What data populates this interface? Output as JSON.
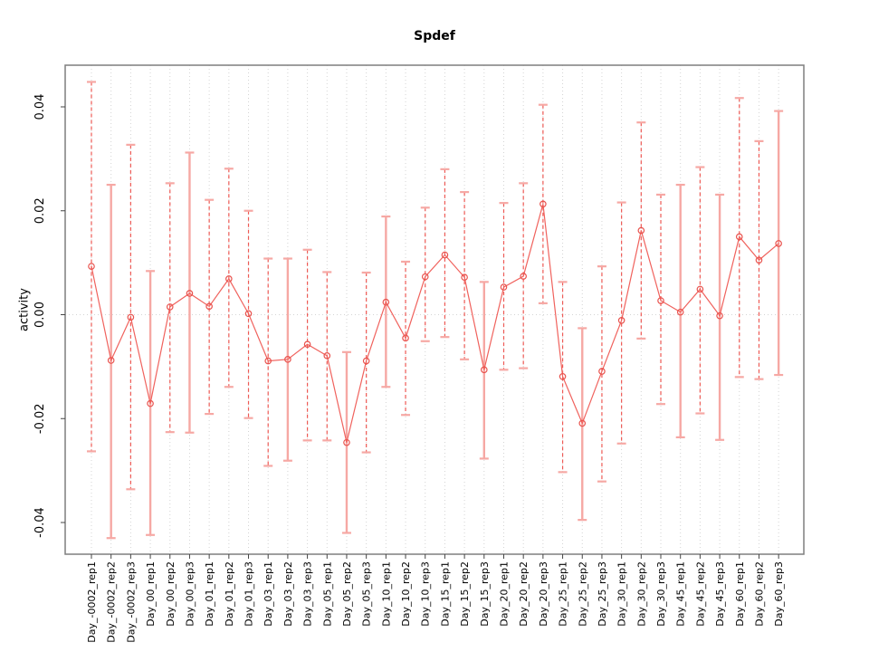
{
  "page": {
    "background": "#ffffff"
  },
  "chart_data": {
    "type": "line",
    "title": "Spdef",
    "xlabel": "",
    "ylabel": "activity",
    "legend": null,
    "axis": {
      "ylim": [
        -0.0461,
        0.048
      ],
      "yticks": [
        -0.04,
        -0.02,
        0.0,
        0.02,
        0.04
      ],
      "ytick_labels": [
        "-0.04",
        "-0.02",
        "0.00",
        "0.02",
        "0.04"
      ],
      "grid": {
        "vertical_dotted_per_category": true,
        "horizontal_zero_line": true
      }
    },
    "colors": {
      "point": "#e9534e",
      "line": "#f0625d",
      "bar_dashed": "#ee5a55",
      "bar_solid": "#f6a8a4",
      "cap": "#f6a8a4",
      "grid": "#d4d4d4",
      "box": "#7f7f7f",
      "tick": "#444444",
      "text": "#000000"
    },
    "series": [
      {
        "name": "activity",
        "points": [
          {
            "label": "Day_-0002_rep1",
            "mean": 0.0093,
            "lower": -0.0263,
            "upper": 0.0448,
            "bar": "dashed"
          },
          {
            "label": "Day_-0002_rep2",
            "mean": -0.0088,
            "lower": -0.043,
            "upper": 0.025,
            "bar": "solid"
          },
          {
            "label": "Day_-0002_rep3",
            "mean": -0.0005,
            "lower": -0.0336,
            "upper": 0.0327,
            "bar": "dashed"
          },
          {
            "label": "Day_00_rep1",
            "mean": -0.0171,
            "lower": -0.0424,
            "upper": 0.0084,
            "bar": "solid"
          },
          {
            "label": "Day_00_rep2",
            "mean": 0.0015,
            "lower": -0.0226,
            "upper": 0.0253,
            "bar": "dashed"
          },
          {
            "label": "Day_00_rep3",
            "mean": 0.0041,
            "lower": -0.0227,
            "upper": 0.0312,
            "bar": "solid"
          },
          {
            "label": "Day_01_rep1",
            "mean": 0.0016,
            "lower": -0.0191,
            "upper": 0.0221,
            "bar": "dashed"
          },
          {
            "label": "Day_01_rep2",
            "mean": 0.0069,
            "lower": -0.0139,
            "upper": 0.0281,
            "bar": "dashed"
          },
          {
            "label": "Day_01_rep3",
            "mean": 0.0002,
            "lower": -0.0199,
            "upper": 0.02,
            "bar": "dashed"
          },
          {
            "label": "Day_03_rep1",
            "mean": -0.0089,
            "lower": -0.0291,
            "upper": 0.0108,
            "bar": "dashed"
          },
          {
            "label": "Day_03_rep2",
            "mean": -0.0086,
            "lower": -0.0281,
            "upper": 0.0108,
            "bar": "solid"
          },
          {
            "label": "Day_03_rep3",
            "mean": -0.0057,
            "lower": -0.0242,
            "upper": 0.0125,
            "bar": "dashed"
          },
          {
            "label": "Day_05_rep1",
            "mean": -0.0079,
            "lower": -0.0242,
            "upper": 0.0082,
            "bar": "dashed"
          },
          {
            "label": "Day_05_rep2",
            "mean": -0.0246,
            "lower": -0.042,
            "upper": -0.0072,
            "bar": "solid"
          },
          {
            "label": "Day_05_rep3",
            "mean": -0.0089,
            "lower": -0.0265,
            "upper": 0.0081,
            "bar": "dashed"
          },
          {
            "label": "Day_10_rep1",
            "mean": 0.0024,
            "lower": -0.0139,
            "upper": 0.0189,
            "bar": "solid"
          },
          {
            "label": "Day_10_rep2",
            "mean": -0.0045,
            "lower": -0.0193,
            "upper": 0.0102,
            "bar": "dashed"
          },
          {
            "label": "Day_10_rep3",
            "mean": 0.0073,
            "lower": -0.0051,
            "upper": 0.0206,
            "bar": "dashed"
          },
          {
            "label": "Day_15_rep1",
            "mean": 0.0115,
            "lower": -0.0043,
            "upper": 0.028,
            "bar": "dashed"
          },
          {
            "label": "Day_15_rep2",
            "mean": 0.0072,
            "lower": -0.0086,
            "upper": 0.0236,
            "bar": "dashed"
          },
          {
            "label": "Day_15_rep3",
            "mean": -0.0106,
            "lower": -0.0277,
            "upper": 0.0063,
            "bar": "solid"
          },
          {
            "label": "Day_20_rep1",
            "mean": 0.0053,
            "lower": -0.0106,
            "upper": 0.0215,
            "bar": "dashed"
          },
          {
            "label": "Day_20_rep2",
            "mean": 0.0074,
            "lower": -0.0103,
            "upper": 0.0253,
            "bar": "dashed"
          },
          {
            "label": "Day_20_rep3",
            "mean": 0.0213,
            "lower": 0.0022,
            "upper": 0.0404,
            "bar": "dashed"
          },
          {
            "label": "Day_25_rep1",
            "mean": -0.0119,
            "lower": -0.0303,
            "upper": 0.0063,
            "bar": "dashed"
          },
          {
            "label": "Day_25_rep2",
            "mean": -0.0209,
            "lower": -0.0395,
            "upper": -0.0026,
            "bar": "solid"
          },
          {
            "label": "Day_25_rep3",
            "mean": -0.0109,
            "lower": -0.0321,
            "upper": 0.0093,
            "bar": "dashed"
          },
          {
            "label": "Day_30_rep1",
            "mean": -0.0011,
            "lower": -0.0248,
            "upper": 0.0216,
            "bar": "dashed"
          },
          {
            "label": "Day_30_rep2",
            "mean": 0.0162,
            "lower": -0.0046,
            "upper": 0.037,
            "bar": "dashed"
          },
          {
            "label": "Day_30_rep3",
            "mean": 0.0027,
            "lower": -0.0172,
            "upper": 0.0231,
            "bar": "dashed"
          },
          {
            "label": "Day_45_rep1",
            "mean": 0.0005,
            "lower": -0.0236,
            "upper": 0.025,
            "bar": "solid"
          },
          {
            "label": "Day_45_rep2",
            "mean": 0.0049,
            "lower": -0.019,
            "upper": 0.0284,
            "bar": "dashed"
          },
          {
            "label": "Day_45_rep3",
            "mean": -0.0002,
            "lower": -0.0241,
            "upper": 0.0231,
            "bar": "solid"
          },
          {
            "label": "Day_60_rep1",
            "mean": 0.015,
            "lower": -0.012,
            "upper": 0.0417,
            "bar": "dashed"
          },
          {
            "label": "Day_60_rep2",
            "mean": 0.0105,
            "lower": -0.0124,
            "upper": 0.0334,
            "bar": "dashed"
          },
          {
            "label": "Day_60_rep3",
            "mean": 0.0137,
            "lower": -0.0116,
            "upper": 0.0392,
            "bar": "solid"
          }
        ]
      }
    ]
  }
}
